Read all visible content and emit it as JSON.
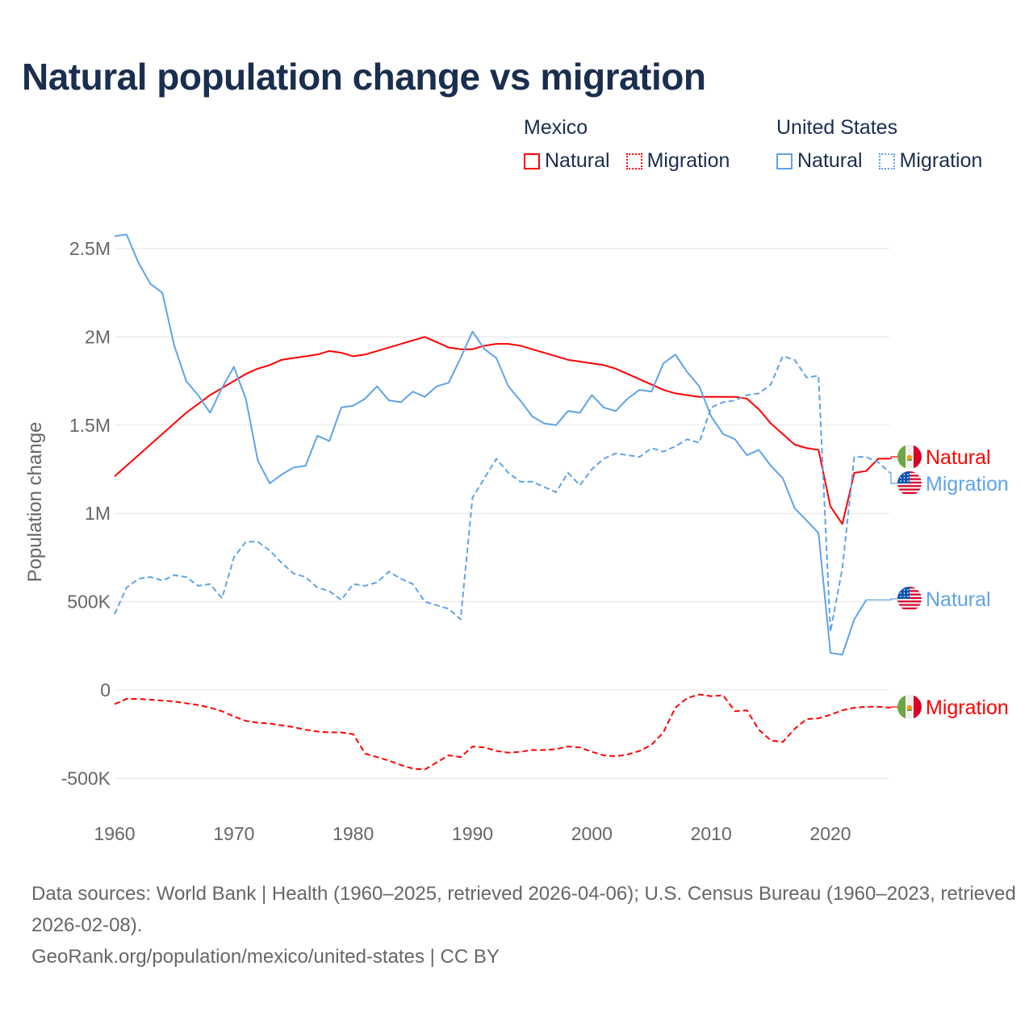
{
  "title": "Natural population change vs migration",
  "legend": {
    "groups": [
      {
        "name": "Mexico",
        "items": [
          {
            "label": "Natural",
            "color": "#ff0000",
            "style": "solid"
          },
          {
            "label": "Migration",
            "color": "#ff0000",
            "style": "dotted"
          }
        ]
      },
      {
        "name": "United States",
        "items": [
          {
            "label": "Natural",
            "color": "#5fa3e8",
            "style": "solid"
          },
          {
            "label": "Migration",
            "color": "#5fa3e8",
            "style": "dotted"
          }
        ]
      }
    ]
  },
  "footer": {
    "sources": "Data sources: World Bank | Health (1960–2025, retrieved 2026-04-06); U.S. Census Bureau (1960–2023, retrieved 2026-02-08).",
    "link": "GeoRank.org/population/mexico/united-states | CC BY"
  },
  "chart_data": {
    "type": "line",
    "title": "Natural population change vs migration",
    "xlabel": "",
    "ylabel": "Population change",
    "xlim": [
      1960,
      2025
    ],
    "ylim": [
      -600000,
      2600000
    ],
    "x_ticks": [
      1960,
      1970,
      1980,
      1990,
      2000,
      2010,
      2020
    ],
    "x_tick_labels": [
      "1960",
      "1970",
      "1980",
      "1990",
      "2000",
      "2010",
      "2020"
    ],
    "y_ticks": [
      -500000,
      0,
      500000,
      1000000,
      1500000,
      2000000,
      2500000
    ],
    "y_tick_labels": [
      "-500K",
      "0",
      "500K",
      "1M",
      "1.5M",
      "2M",
      "2.5M"
    ],
    "grid": true,
    "legend_position": "top-right",
    "start_year": 1960,
    "series": [
      {
        "name": "Mexico Natural",
        "end_label": "Natural",
        "flag": "mexico",
        "color": "#ff0000",
        "dash": false,
        "label_offset": 566,
        "values": [
          1210000,
          1270000,
          1330000,
          1390000,
          1450000,
          1510000,
          1570000,
          1620000,
          1670000,
          1710000,
          1750000,
          1790000,
          1820000,
          1840000,
          1870000,
          1880000,
          1890000,
          1900000,
          1920000,
          1910000,
          1890000,
          1900000,
          1920000,
          1940000,
          1960000,
          1980000,
          2000000,
          1970000,
          1940000,
          1930000,
          1930000,
          1950000,
          1960000,
          1960000,
          1950000,
          1930000,
          1910000,
          1890000,
          1870000,
          1860000,
          1850000,
          1840000,
          1820000,
          1790000,
          1760000,
          1730000,
          1700000,
          1680000,
          1670000,
          1660000,
          1660000,
          1660000,
          1660000,
          1650000,
          1590000,
          1510000,
          1450000,
          1390000,
          1370000,
          1360000,
          1040000,
          940000,
          1230000,
          1240000,
          1310000,
          1310000
        ]
      },
      {
        "name": "United States Migration",
        "end_label": "Migration",
        "flag": "usa",
        "color": "#5fa3e8",
        "dash": true,
        "label_offset": 599,
        "values": [
          430000,
          580000,
          630000,
          640000,
          620000,
          650000,
          640000,
          590000,
          600000,
          520000,
          750000,
          840000,
          840000,
          790000,
          720000,
          660000,
          640000,
          580000,
          560000,
          510000,
          600000,
          590000,
          610000,
          670000,
          630000,
          600000,
          500000,
          480000,
          460000,
          400000,
          1090000,
          1200000,
          1310000,
          1230000,
          1180000,
          1180000,
          1150000,
          1120000,
          1230000,
          1160000,
          1250000,
          1310000,
          1340000,
          1330000,
          1320000,
          1370000,
          1350000,
          1380000,
          1420000,
          1400000,
          1600000,
          1630000,
          1640000,
          1670000,
          1680000,
          1730000,
          1890000,
          1870000,
          1770000,
          1780000,
          330000,
          690000,
          1320000,
          1320000,
          1290000,
          1230000
        ]
      },
      {
        "name": "United States Natural",
        "end_label": "Natural",
        "flag": "usa",
        "color": "#5fa3e8",
        "dash": false,
        "label_offset": 742,
        "values": [
          2570000,
          2580000,
          2420000,
          2300000,
          2250000,
          1950000,
          1750000,
          1670000,
          1570000,
          1710000,
          1830000,
          1650000,
          1300000,
          1170000,
          1220000,
          1260000,
          1270000,
          1440000,
          1410000,
          1600000,
          1610000,
          1650000,
          1720000,
          1640000,
          1630000,
          1690000,
          1660000,
          1720000,
          1740000,
          1880000,
          2030000,
          1930000,
          1880000,
          1720000,
          1640000,
          1550000,
          1510000,
          1500000,
          1580000,
          1570000,
          1670000,
          1600000,
          1580000,
          1650000,
          1700000,
          1690000,
          1850000,
          1900000,
          1800000,
          1720000,
          1550000,
          1450000,
          1420000,
          1330000,
          1360000,
          1270000,
          1200000,
          1030000,
          960000,
          890000,
          210000,
          200000,
          400000,
          510000
        ]
      },
      {
        "name": "Mexico Migration",
        "end_label": "Migration",
        "flag": "mexico",
        "color": "#ff0000",
        "dash": true,
        "label_offset": 876,
        "values": [
          -80000,
          -50000,
          -50000,
          -55000,
          -60000,
          -65000,
          -75000,
          -85000,
          -100000,
          -120000,
          -150000,
          -175000,
          -185000,
          -190000,
          -200000,
          -210000,
          -225000,
          -235000,
          -240000,
          -240000,
          -250000,
          -360000,
          -380000,
          -400000,
          -425000,
          -445000,
          -450000,
          -410000,
          -370000,
          -380000,
          -320000,
          -325000,
          -345000,
          -355000,
          -350000,
          -340000,
          -340000,
          -335000,
          -320000,
          -325000,
          -350000,
          -370000,
          -375000,
          -365000,
          -345000,
          -310000,
          -240000,
          -100000,
          -45000,
          -25000,
          -35000,
          -30000,
          -120000,
          -115000,
          -225000,
          -285000,
          -295000,
          -220000,
          -165000,
          -160000,
          -140000,
          -115000,
          -100000,
          -95000,
          -95000,
          -100000
        ]
      }
    ]
  }
}
